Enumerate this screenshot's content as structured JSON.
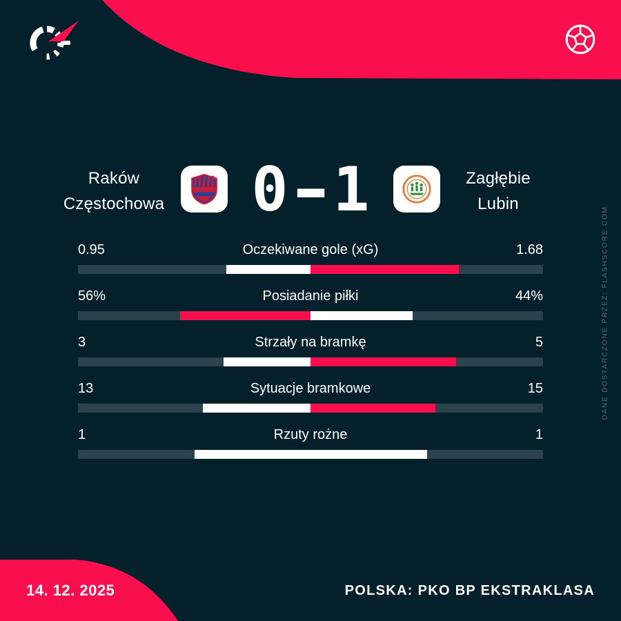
{
  "colors": {
    "bg": "#04202a",
    "accent": "#fa0f4e",
    "track": "#2b434c",
    "muted": "#54707a",
    "white": "#ffffff"
  },
  "icons": {
    "brand": "flashscore-logo-icon",
    "sport": "football-icon"
  },
  "header": {
    "home_team": {
      "line1": "Raków",
      "line2": "Częstochowa"
    },
    "away_team": {
      "line1": "Zagłębie",
      "line2": "Lubin"
    },
    "score": {
      "home": "0",
      "separator": "-",
      "away": "1"
    }
  },
  "chart_data": {
    "type": "bar",
    "subtype": "diverging-center-stat-bars",
    "categories": [
      "Oczekiwane gole (xG)",
      "Posiadanie piłki",
      "Strzały na bramkę",
      "Sytuacje bramkowe",
      "Rzuty rożne"
    ],
    "series": [
      {
        "name": "Raków Częstochowa",
        "values": [
          0.95,
          56,
          3,
          13,
          1
        ],
        "display": [
          "0.95",
          "56%",
          "3",
          "13",
          "1"
        ]
      },
      {
        "name": "Zagłębie Lubin",
        "values": [
          1.68,
          44,
          5,
          15,
          1
        ],
        "display": [
          "1.68",
          "44%",
          "5",
          "15",
          "1"
        ]
      }
    ],
    "bar_rule": "segment width = value/(home+away) of each half from center; higher value colored accent red, lower or tied colored white",
    "legend_position": "none",
    "grid": false
  },
  "footer": {
    "date": "14. 12. 2025",
    "competition": "POLSKA: PKO BP EKSTRAKLASA"
  },
  "watermark": "DANE DOSTARCZONE PRZEZ: FLASHSCORE.COM"
}
